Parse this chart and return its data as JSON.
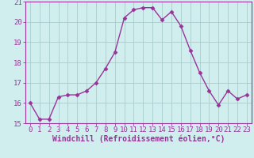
{
  "x": [
    0,
    1,
    2,
    3,
    4,
    5,
    6,
    7,
    8,
    9,
    10,
    11,
    12,
    13,
    14,
    15,
    16,
    17,
    18,
    19,
    20,
    21,
    22,
    23
  ],
  "y": [
    16.0,
    15.2,
    15.2,
    16.3,
    16.4,
    16.4,
    16.6,
    17.0,
    17.7,
    18.5,
    20.2,
    20.6,
    20.7,
    20.7,
    20.1,
    20.5,
    19.8,
    18.6,
    17.5,
    16.6,
    15.9,
    16.6,
    16.2,
    16.4
  ],
  "line_color": "#993399",
  "marker": "D",
  "marker_size": 2.5,
  "line_width": 1.0,
  "bg_color": "#d0eeee",
  "grid_color": "#aacccc",
  "xlabel": "Windchill (Refroidissement éolien,°C)",
  "ylim": [
    15,
    21
  ],
  "xlim": [
    -0.5,
    23.5
  ],
  "yticks": [
    15,
    16,
    17,
    18,
    19,
    20,
    21
  ],
  "xticks": [
    0,
    1,
    2,
    3,
    4,
    5,
    6,
    7,
    8,
    9,
    10,
    11,
    12,
    13,
    14,
    15,
    16,
    17,
    18,
    19,
    20,
    21,
    22,
    23
  ],
  "xlabel_fontsize": 7,
  "tick_fontsize": 6.5,
  "label_color": "#993399"
}
